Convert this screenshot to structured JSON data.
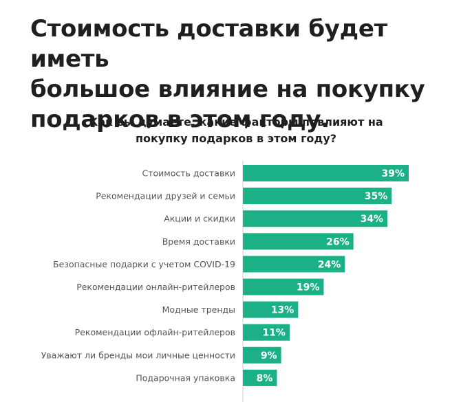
{
  "headline": {
    "line1": "Стоимость доставки будет иметь",
    "line2": "большое влияние на покупку",
    "line3": "подарков в этом году."
  },
  "chart_data": {
    "type": "bar",
    "orientation": "horizontal",
    "title_lines": [
      "Как вы думаете, какие факторы повлияют на",
      "покупку подарков в этом году?"
    ],
    "categories": [
      "Стоимость доставки",
      "Рекомендации друзей и семьи",
      "Акции и скидки",
      "Время доставки",
      "Безопасные подарки с учетом COVID-19",
      "Рекомендации онлайн-ритейлеров",
      "Модные тренды",
      "Рекомендации офлайн-ритейлеров",
      "Уважают ли бренды мои личные ценности",
      "Подарочная упаковка"
    ],
    "values": [
      39,
      35,
      34,
      26,
      24,
      19,
      13,
      11,
      9,
      8
    ],
    "value_labels": [
      "39%",
      "35%",
      "34%",
      "26%",
      "24%",
      "19%",
      "13%",
      "11%",
      "9%",
      "8%"
    ],
    "unit": "%",
    "xlim": [
      0,
      39
    ],
    "grid": false,
    "legend": "none",
    "bar_color": "#1bb086",
    "axis_color": "#d0d0d0"
  }
}
